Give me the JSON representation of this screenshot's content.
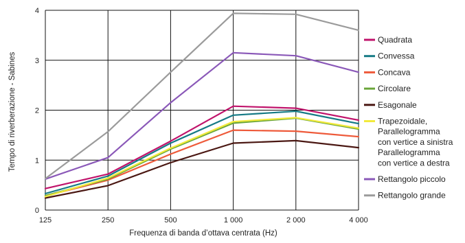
{
  "chart_data": {
    "type": "line",
    "xlabel": "Frequenza di banda d’ottava centrata (Hz)",
    "ylabel": "Tempo di riverberazione - Sabines",
    "categories": [
      "125",
      "250",
      "500",
      "1 000",
      "2 000",
      "4 000"
    ],
    "ylim": [
      0,
      4
    ],
    "yticks": [
      "0",
      "1",
      "2",
      "3",
      "4"
    ],
    "grid": true,
    "legend_position": "right",
    "series": [
      {
        "name": "Quadrata",
        "color": "#c0136b",
        "values": [
          0.43,
          0.72,
          1.38,
          2.08,
          2.04,
          1.8
        ]
      },
      {
        "name": "Convessa",
        "color": "#157a85",
        "values": [
          0.33,
          0.68,
          1.34,
          1.9,
          1.98,
          1.73
        ]
      },
      {
        "name": "Concava",
        "color": "#ee5a3a",
        "values": [
          0.28,
          0.6,
          1.12,
          1.6,
          1.58,
          1.47
        ]
      },
      {
        "name": "Circolare",
        "color": "#6aa53a",
        "values": [
          0.29,
          0.62,
          1.22,
          1.74,
          1.84,
          1.62
        ]
      },
      {
        "name": "Esagonale",
        "color": "#4a1712",
        "values": [
          0.24,
          0.49,
          0.95,
          1.34,
          1.39,
          1.25
        ]
      },
      {
        "name": "Trapezoidale, Parallelogramma con vertice a sinistra Parallelogramma con vertice a destra",
        "color": "#f2ea3c",
        "values": [
          0.27,
          0.64,
          1.24,
          1.77,
          1.85,
          1.64
        ]
      },
      {
        "name": "Rettangolo piccolo",
        "color": "#8a58b8",
        "values": [
          0.62,
          1.05,
          2.15,
          3.15,
          3.09,
          2.76
        ]
      },
      {
        "name": "Rettangolo grande",
        "color": "#9b9b9b",
        "values": [
          0.63,
          1.57,
          2.76,
          3.94,
          3.92,
          3.6
        ]
      }
    ],
    "legend": [
      {
        "lines": [
          "Quadrata"
        ],
        "color": "#c0136b"
      },
      {
        "lines": [
          "Convessa"
        ],
        "color": "#157a85"
      },
      {
        "lines": [
          "Concava"
        ],
        "color": "#ee5a3a"
      },
      {
        "lines": [
          "Circolare"
        ],
        "color": "#6aa53a"
      },
      {
        "lines": [
          "Esagonale"
        ],
        "color": "#4a1712"
      },
      {
        "lines": [
          "Trapezoidale,",
          "Parallelogramma",
          "con vertice a sinistra",
          "Parallelogramma",
          "con vertice a destra"
        ],
        "color": "#f2ea3c"
      },
      {
        "lines": [
          "Rettangolo piccolo"
        ],
        "color": "#8a58b8"
      },
      {
        "lines": [
          "Rettangolo grande"
        ],
        "color": "#9b9b9b"
      }
    ]
  }
}
